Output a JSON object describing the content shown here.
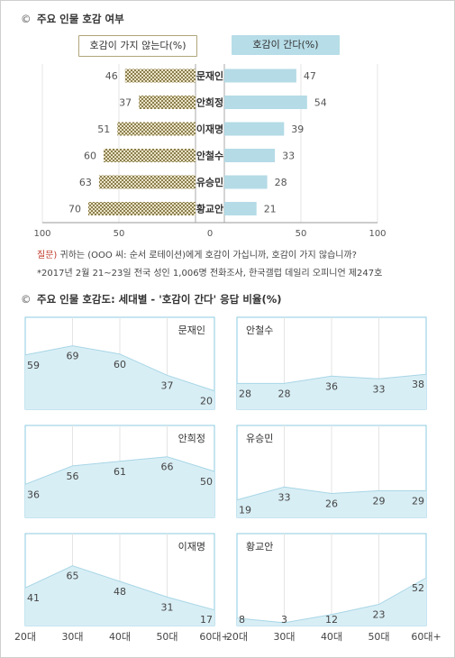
{
  "section1": {
    "title": "주요 인물 호감 여부",
    "legend_left": "호감이 가지 않는다(%)",
    "legend_right": "호감이 간다(%)",
    "note_question_label": "질문)",
    "note_question_text": " 귀하는 (OOO 씨: 순서 로테이션)에게 호감이 가십니까, 호감이 가지 않습니까?",
    "note_survey": "*2017년 2월 21~23일 전국 성인 1,006명 전화조사, 한국갤럽 데일리 오피니언 제247호"
  },
  "section2": {
    "title": "주요 인물 호감도: 세대별 - '호감이 간다' 응답 비율(%)"
  },
  "colors": {
    "favorable": "#b4dbe6",
    "favorable_line": "#8ccbe0",
    "unfavorable": "#b0a57a",
    "legend_right_bg": "#b7dde8",
    "legend_left_bg": "#ffffff",
    "panel_fill": "#d8eef5",
    "panel_border": "#8ccbe0"
  },
  "chart_data": [
    {
      "type": "bar",
      "orientation": "horizontal-diverging",
      "categories": [
        "문재인",
        "안희정",
        "이재명",
        "안철수",
        "유승민",
        "황교안"
      ],
      "series": [
        {
          "name": "호감이 가지 않는다(%)",
          "values": [
            46,
            37,
            51,
            60,
            63,
            70
          ]
        },
        {
          "name": "호감이 간다(%)",
          "values": [
            47,
            54,
            39,
            33,
            28,
            21
          ]
        }
      ],
      "xlim_left": [
        100,
        0
      ],
      "xlim_right": [
        0,
        100
      ],
      "tick_labels": [
        "100",
        "50",
        "0",
        "50",
        "100"
      ],
      "grid": true
    },
    {
      "type": "area",
      "x": [
        "20대",
        "30대",
        "40대",
        "50대",
        "60대+"
      ],
      "ylim": [
        0,
        100
      ],
      "panels": [
        {
          "name": "문재인",
          "values": [
            59,
            69,
            60,
            37,
            20
          ]
        },
        {
          "name": "안철수",
          "values": [
            28,
            28,
            36,
            33,
            38
          ]
        },
        {
          "name": "안희정",
          "values": [
            36,
            56,
            61,
            66,
            50
          ]
        },
        {
          "name": "유승민",
          "values": [
            19,
            33,
            26,
            29,
            29
          ]
        },
        {
          "name": "이재명",
          "values": [
            41,
            65,
            48,
            31,
            17
          ]
        },
        {
          "name": "황교안",
          "values": [
            8,
            3,
            12,
            23,
            52
          ]
        }
      ]
    }
  ]
}
